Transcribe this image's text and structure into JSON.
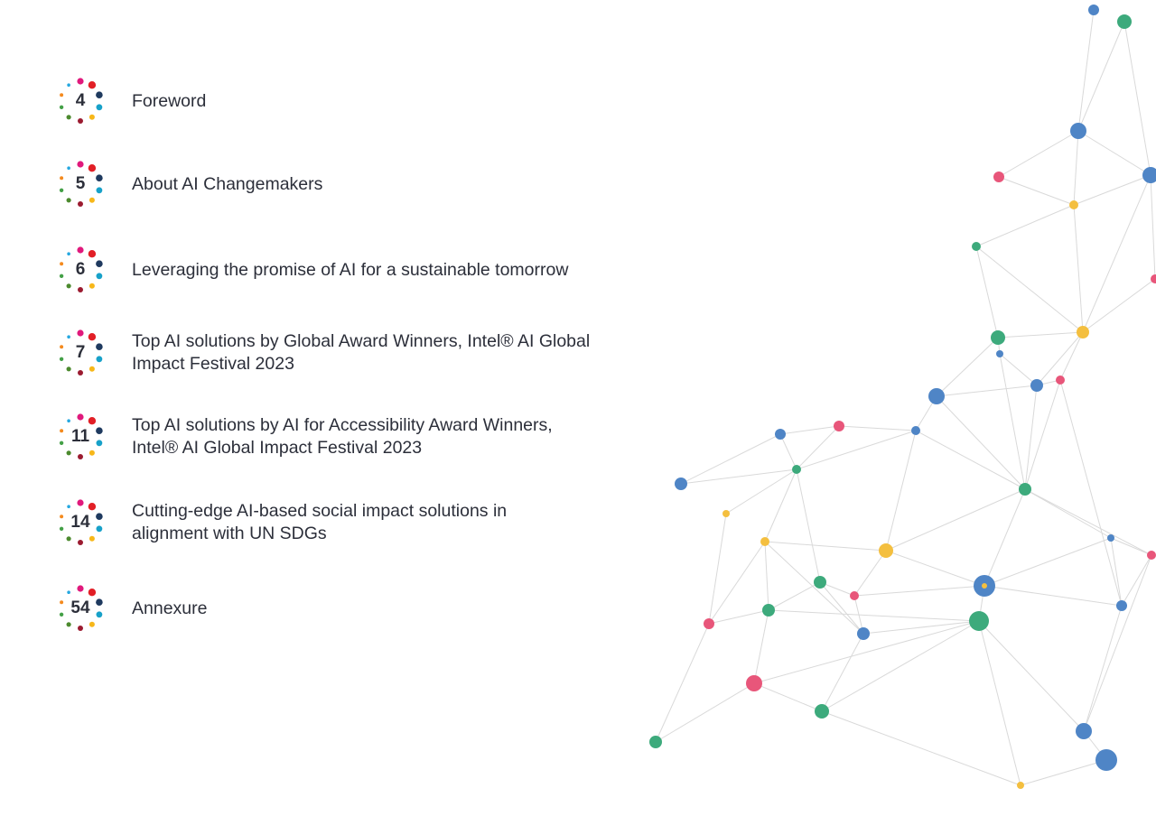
{
  "toc": {
    "items": [
      {
        "page": "4",
        "title": "Foreword"
      },
      {
        "page": "5",
        "title": "About AI Changemakers"
      },
      {
        "page": "6",
        "title": "Leveraging the promise of AI for a sustainable tomorrow"
      },
      {
        "page": "7",
        "title": "Top AI solutions by Global Award Winners, Intel® AI Global\nImpact Festival 2023"
      },
      {
        "page": "11",
        "title": "Top AI solutions by AI for Accessibility Award Winners,\nIntel® AI Global Impact Festival 2023"
      },
      {
        "page": "14",
        "title": "Cutting-edge AI-based social impact solutions in\nalignment with UN SDGs"
      },
      {
        "page": "54",
        "title": "Annexure"
      }
    ]
  },
  "colors": {
    "text": "#2c2f3a",
    "blue": "#4f85c6",
    "green": "#3daa7c",
    "yellow": "#f4bf3f",
    "pink": "#e8567a",
    "line": "#d9d9d9",
    "badge_dots": [
      "#e0197c",
      "#e21f26",
      "#1f3a5f",
      "#17a1c9",
      "#f7b719",
      "#9b1b30",
      "#4c8a2e",
      "#43a047",
      "#f48a1e",
      "#26a8e0"
    ]
  },
  "decoration": {
    "icon": "network-graph-illustration"
  }
}
